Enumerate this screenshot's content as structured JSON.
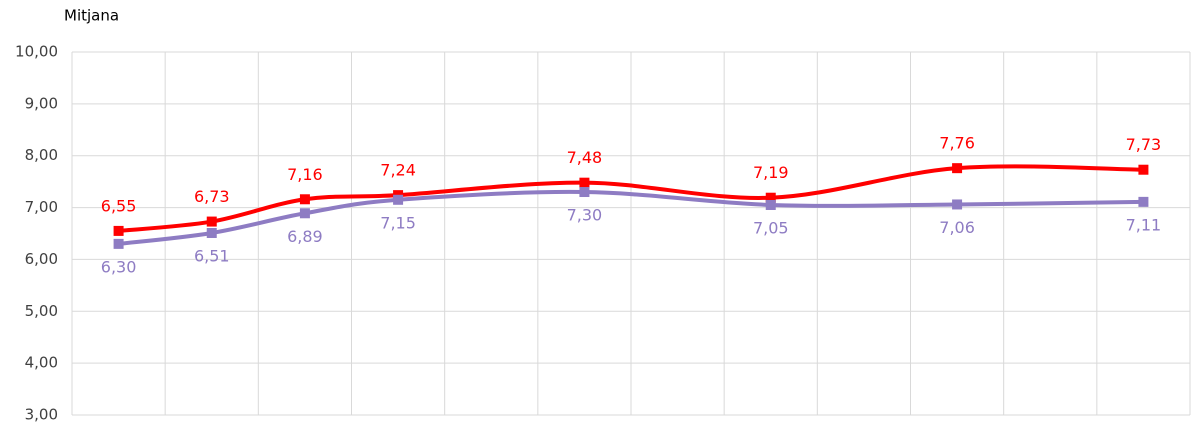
{
  "chart_data": {
    "type": "line",
    "y_axis_title": "Mitjana",
    "x": [
      1,
      2,
      3,
      4,
      6,
      8,
      10,
      12
    ],
    "xlim": [
      0.5,
      12.5
    ],
    "ylim": [
      3,
      10
    ],
    "yticks": [
      {
        "value": 3,
        "label": "3,00"
      },
      {
        "value": 4,
        "label": "4,00"
      },
      {
        "value": 5,
        "label": "5,00"
      },
      {
        "value": 6,
        "label": "6,00"
      },
      {
        "value": 7,
        "label": "7,00"
      },
      {
        "value": 8,
        "label": "8,00"
      },
      {
        "value": 9,
        "label": "9,00"
      },
      {
        "value": 10,
        "label": "10,00"
      }
    ],
    "grid": true,
    "smooth": true,
    "series": [
      {
        "color": "#ff0000",
        "values": [
          6.55,
          6.73,
          7.16,
          7.24,
          7.48,
          7.19,
          7.76,
          7.73
        ],
        "value_labels": [
          "6,55",
          "6,73",
          "7,16",
          "7,24",
          "7,48",
          "7,19",
          "7,76",
          "7,73"
        ],
        "label_position": "above"
      },
      {
        "color": "#8e7cc3",
        "values": [
          6.3,
          6.51,
          6.89,
          7.15,
          7.3,
          7.05,
          7.06,
          7.11
        ],
        "value_labels": [
          "6,30",
          "6,51",
          "6,89",
          "7,15",
          "7,30",
          "7,05",
          "7,06",
          "7,11"
        ],
        "label_position": "below"
      }
    ]
  }
}
